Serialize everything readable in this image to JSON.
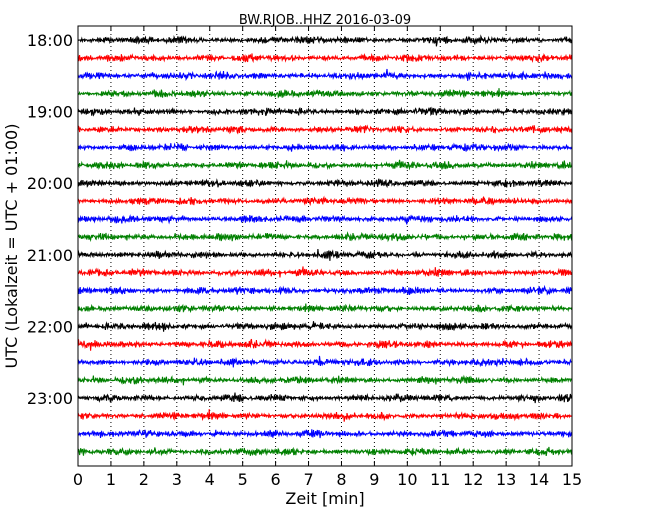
{
  "chart_data": {
    "type": "line",
    "title": "BW.RJOB..HHZ 2016-03-09",
    "xlabel": "Zeit  [min]",
    "ylabel": "UTC (Lokalzeit = UTC + 01:00)",
    "xlim": [
      0,
      15
    ],
    "x_ticks": [
      "0",
      "1",
      "2",
      "3",
      "4",
      "5",
      "6",
      "7",
      "8",
      "9",
      "10",
      "11",
      "12",
      "13",
      "14",
      "15"
    ],
    "y_ticks": [
      "18:00",
      "19:00",
      "20:00",
      "21:00",
      "22:00",
      "23:00"
    ],
    "vertical_grid": "dotted",
    "trace_colors": [
      "#000000",
      "#ff0000",
      "#0000ff",
      "#008000"
    ],
    "series": [
      {
        "start": "18:00"
      },
      {
        "start": "18:15"
      },
      {
        "start": "18:30"
      },
      {
        "start": "18:45"
      },
      {
        "start": "19:00"
      },
      {
        "start": "19:15"
      },
      {
        "start": "19:30"
      },
      {
        "start": "19:45"
      },
      {
        "start": "20:00"
      },
      {
        "start": "20:15"
      },
      {
        "start": "20:30"
      },
      {
        "start": "20:45"
      },
      {
        "start": "21:00"
      },
      {
        "start": "21:15"
      },
      {
        "start": "21:30"
      },
      {
        "start": "21:45"
      },
      {
        "start": "22:00"
      },
      {
        "start": "22:15"
      },
      {
        "start": "22:30"
      },
      {
        "start": "22:45"
      },
      {
        "start": "23:00"
      },
      {
        "start": "23:15"
      },
      {
        "start": "23:30"
      },
      {
        "start": "23:45"
      }
    ]
  }
}
